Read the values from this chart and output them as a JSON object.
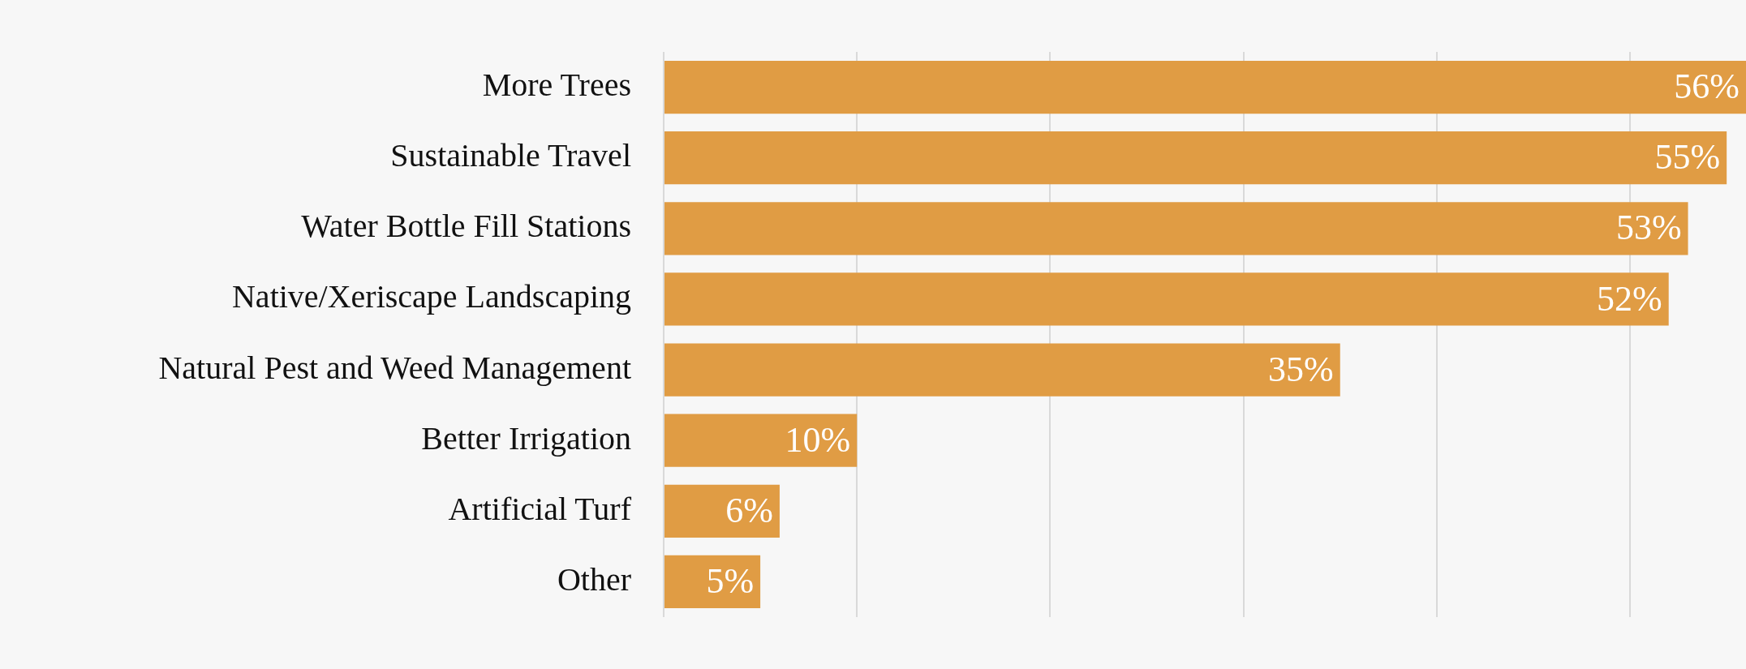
{
  "chart_data": {
    "type": "bar",
    "orientation": "horizontal",
    "categories": [
      "More Trees",
      "Sustainable Travel",
      "Water Bottle Fill Stations",
      "Native/Xeriscape Landscaping",
      "Natural Pest and Weed Management",
      "Better Irrigation",
      "Artificial Turf",
      "Other"
    ],
    "values": [
      56,
      55,
      53,
      52,
      35,
      10,
      6,
      5
    ],
    "value_labels": [
      "56%",
      "55%",
      "53%",
      "52%",
      "35%",
      "10%",
      "6%",
      "5%"
    ],
    "color": "#e09c44",
    "xlim": [
      0,
      56
    ],
    "xticks": [
      {
        "value": 0,
        "label": null
      },
      {
        "value": 10,
        "label": null
      },
      {
        "value": 20,
        "label": null
      },
      {
        "value": 30,
        "label": null
      },
      {
        "value": 40,
        "label": null
      },
      {
        "value": 50,
        "label": null
      }
    ],
    "grid": "x",
    "legend": false
  }
}
